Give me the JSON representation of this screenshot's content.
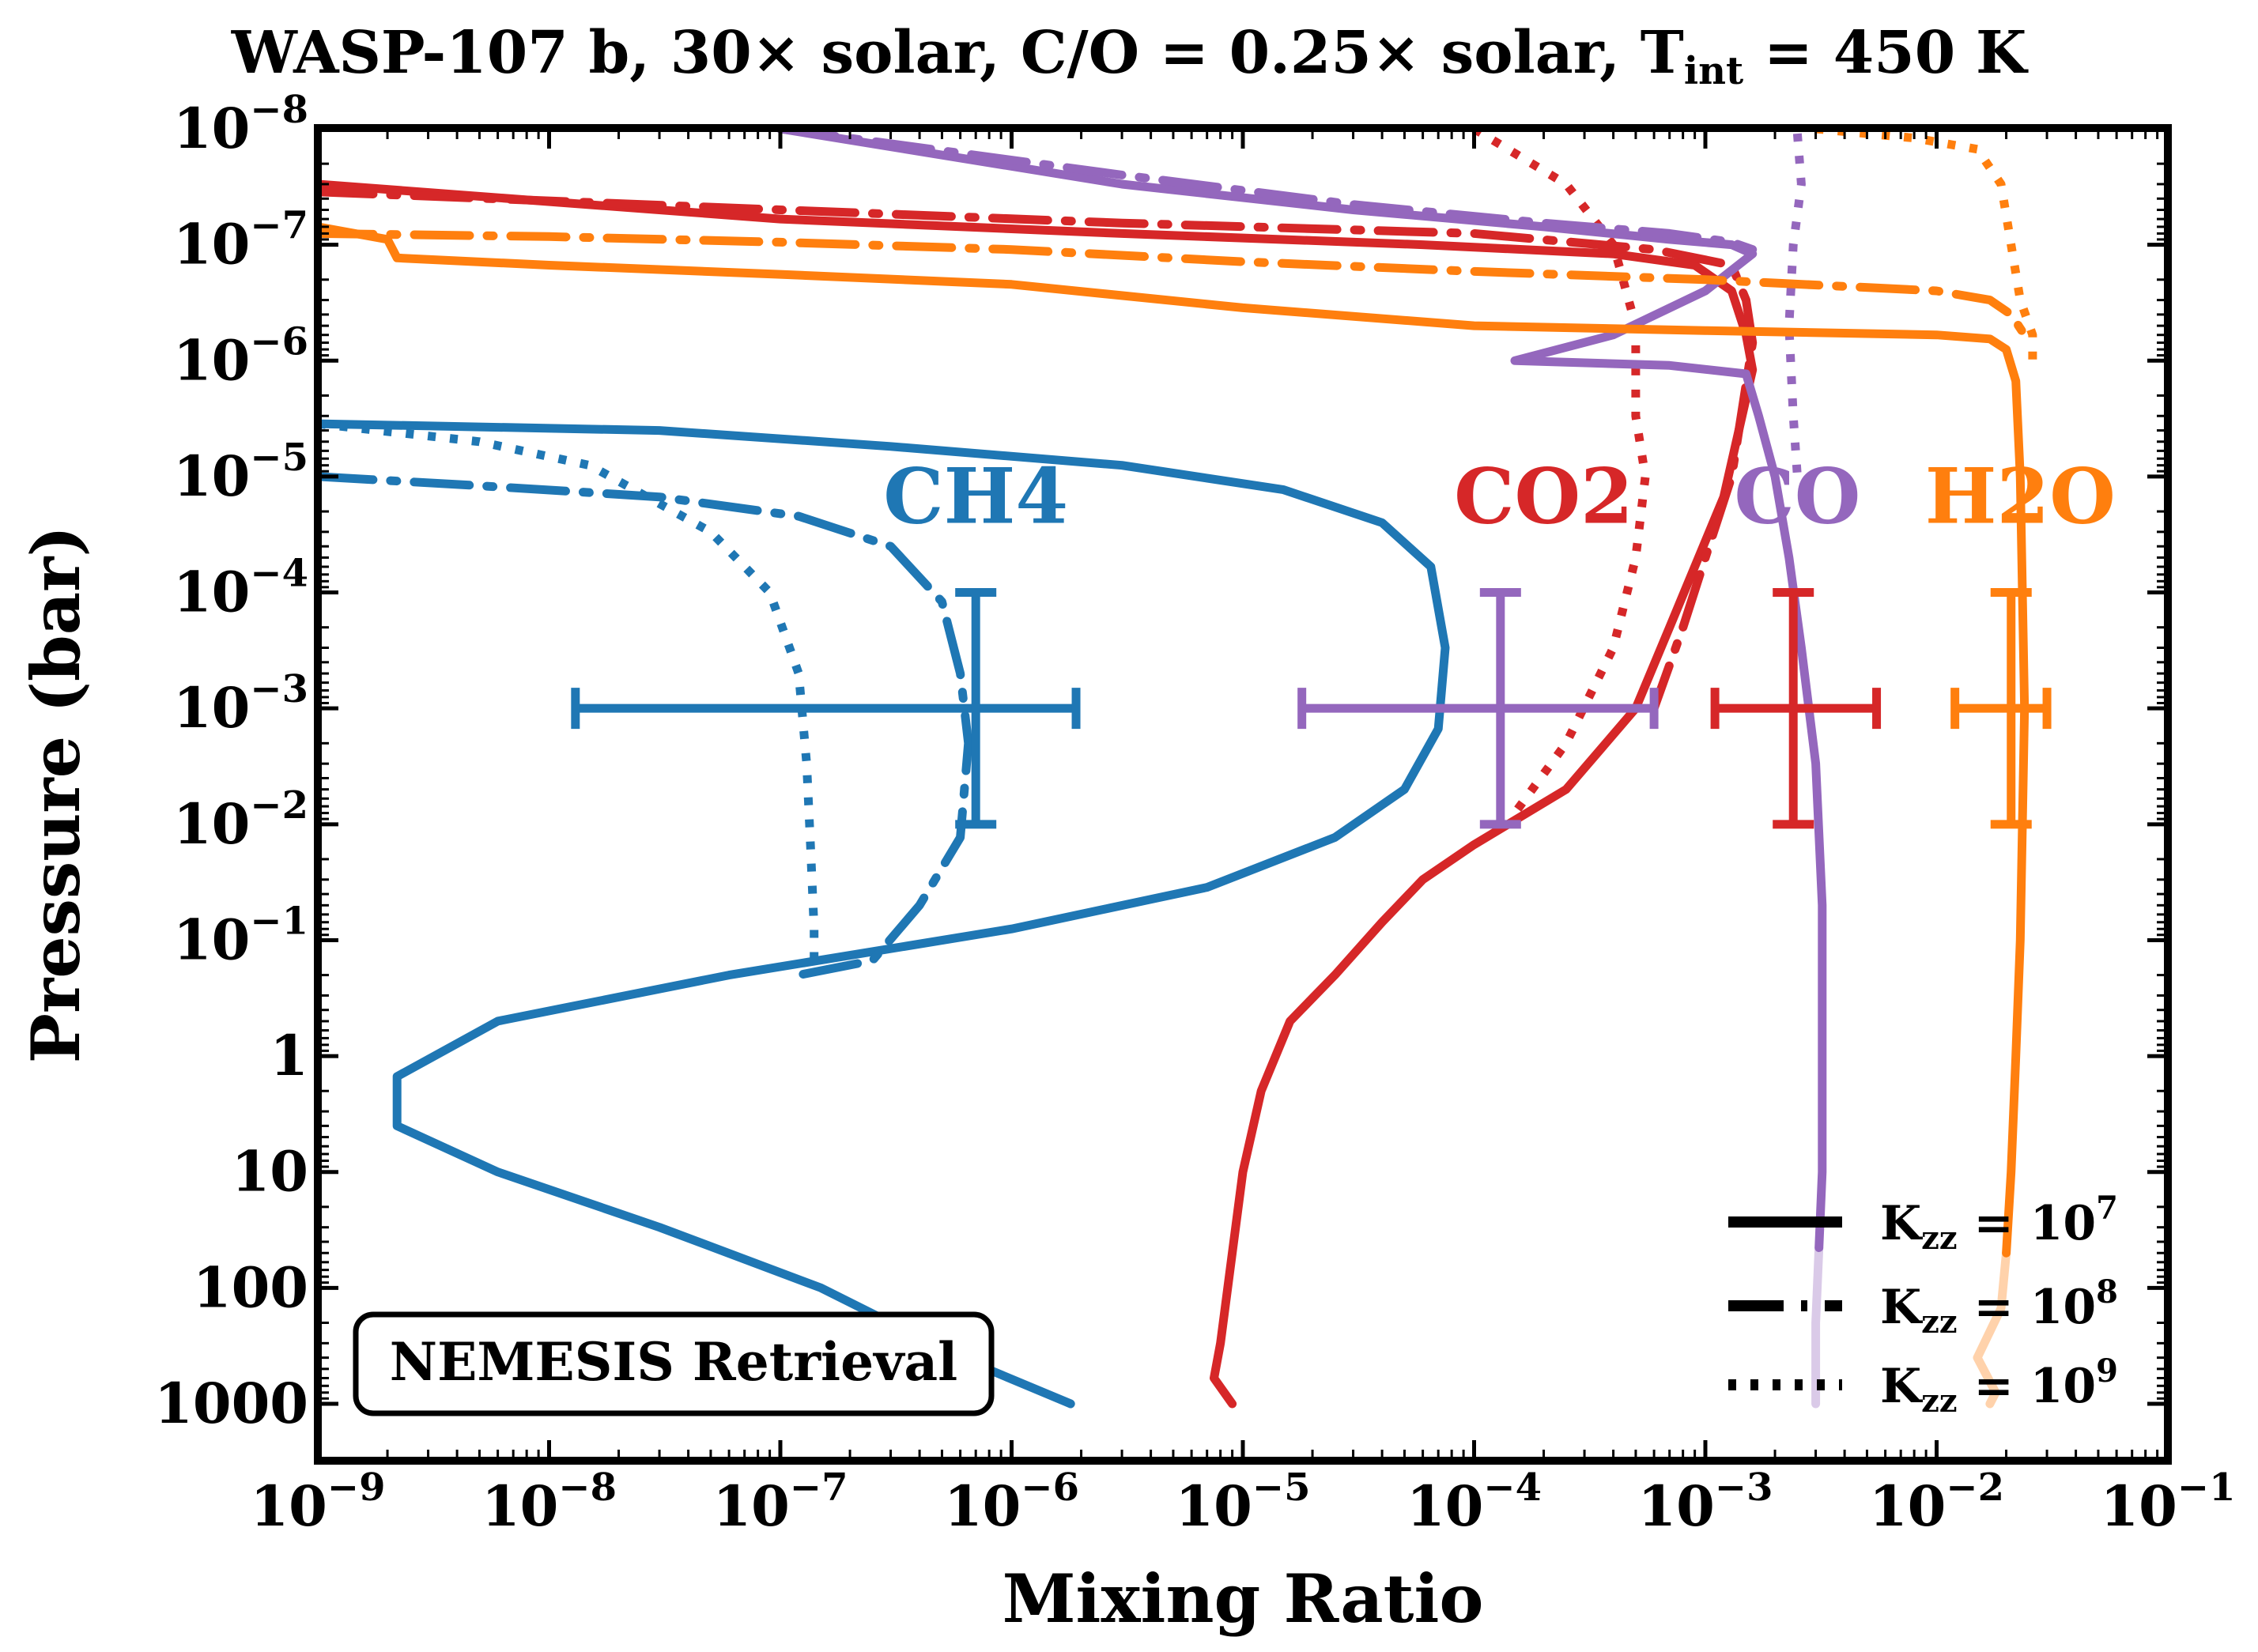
{
  "chart_data": {
    "type": "line",
    "title": "WASP-107 b, 30× solar, C/O = 0.25× solar, T",
    "title_sub": "int",
    "title_tail": " = 450 K",
    "xlabel": "Mixing Ratio",
    "ylabel": "Pressure (bar)",
    "xscale": "log",
    "yscale": "log",
    "y_inverted": true,
    "xlim": [
      1e-09,
      0.1
    ],
    "ylim": [
      1000,
      1e-08
    ],
    "x_ticks": [
      {
        "value": 1e-09,
        "base": "10",
        "exp": "−9"
      },
      {
        "value": 1e-08,
        "base": "10",
        "exp": "−8"
      },
      {
        "value": 1e-07,
        "base": "10",
        "exp": "−7"
      },
      {
        "value": 1e-06,
        "base": "10",
        "exp": "−6"
      },
      {
        "value": 1e-05,
        "base": "10",
        "exp": "−5"
      },
      {
        "value": 0.0001,
        "base": "10",
        "exp": "−4"
      },
      {
        "value": 0.001,
        "base": "10",
        "exp": "−3"
      },
      {
        "value": 0.01,
        "base": "10",
        "exp": "−2"
      },
      {
        "value": 0.1,
        "base": "10",
        "exp": "−1"
      }
    ],
    "y_ticks": [
      {
        "value": 1e-08,
        "base": "10",
        "exp": "−8"
      },
      {
        "value": 1e-07,
        "base": "10",
        "exp": "−7"
      },
      {
        "value": 1e-06,
        "base": "10",
        "exp": "−6"
      },
      {
        "value": 1e-05,
        "base": "10",
        "exp": "−5"
      },
      {
        "value": 0.0001,
        "base": "10",
        "exp": "−4"
      },
      {
        "value": 0.001,
        "base": "10",
        "exp": "−3"
      },
      {
        "value": 0.01,
        "base": "10",
        "exp": "−2"
      },
      {
        "value": 0.1,
        "base": "10",
        "exp": "−1"
      },
      {
        "value": 1,
        "base": "1",
        "exp": ""
      },
      {
        "value": 10,
        "base": "10",
        "exp": ""
      },
      {
        "value": 100,
        "base": "100",
        "exp": ""
      },
      {
        "value": 1000,
        "base": "1000",
        "exp": ""
      }
    ],
    "species": [
      {
        "name": "CH4",
        "color": "#1f77b4",
        "label_at": [
          7e-07,
          2.5e-05
        ]
      },
      {
        "name": "CO2",
        "color": "#d62728",
        "label_at": [
          0.0002,
          2.5e-05
        ]
      },
      {
        "name": "CO",
        "color": "#9467bd",
        "label_at": [
          0.0025,
          2.5e-05
        ]
      },
      {
        "name": "H2O",
        "color": "#ff7f0e",
        "label_at": [
          0.023,
          2.5e-05
        ]
      }
    ],
    "series": [
      {
        "species": "CH4",
        "kzz": "1e7",
        "style": "solid",
        "color": "#1f77b4",
        "points": [
          [
            1e-09,
            3.5e-06
          ],
          [
            3e-08,
            4e-06
          ],
          [
            3e-07,
            5.5e-06
          ],
          [
            3e-06,
            8e-06
          ],
          [
            1.5e-05,
            1.3e-05
          ],
          [
            4e-05,
            2.5e-05
          ],
          [
            6.5e-05,
            6e-05
          ],
          [
            7.5e-05,
            0.0003
          ],
          [
            7e-05,
            0.0015
          ],
          [
            5e-05,
            0.005
          ],
          [
            2.5e-05,
            0.013
          ],
          [
            7e-06,
            0.035
          ],
          [
            1e-06,
            0.08
          ],
          [
            6e-08,
            0.2
          ],
          [
            6e-09,
            0.5
          ],
          [
            2.2e-09,
            1.5
          ],
          [
            2.2e-09,
            4
          ],
          [
            6e-09,
            10
          ],
          [
            3e-08,
            30
          ],
          [
            1.5e-07,
            100
          ],
          [
            6e-07,
            400
          ],
          [
            1.8e-06,
            1000
          ]
        ]
      },
      {
        "species": "CH4",
        "kzz": "1e8",
        "style": "dashdot",
        "color": "#1f77b4",
        "points": [
          [
            1e-09,
            1e-05
          ],
          [
            5e-09,
            1.2e-05
          ],
          [
            3e-08,
            1.5e-05
          ],
          [
            1.2e-07,
            2.2e-05
          ],
          [
            3e-07,
            4e-05
          ],
          [
            5e-07,
            0.00012
          ],
          [
            6e-07,
            0.0005
          ],
          [
            6.5e-07,
            0.002
          ],
          [
            6e-07,
            0.013
          ],
          [
            4e-07,
            0.05
          ],
          [
            2.5e-07,
            0.15
          ],
          [
            1.2e-07,
            0.2
          ]
        ]
      },
      {
        "species": "CH4",
        "kzz": "1e9",
        "style": "dotted",
        "color": "#1f77b4",
        "points": [
          [
            1e-09,
            3.5e-06
          ],
          [
            5e-09,
            5e-06
          ],
          [
            1.5e-08,
            8e-06
          ],
          [
            5e-08,
            3e-05
          ],
          [
            9e-08,
            0.0001
          ],
          [
            1.2e-07,
            0.0005
          ],
          [
            1.3e-07,
            0.003
          ],
          [
            1.35e-07,
            0.015
          ],
          [
            1.4e-07,
            0.08
          ],
          [
            1.4e-07,
            0.16
          ]
        ]
      },
      {
        "species": "CO2",
        "kzz": "1e7",
        "style": "solid",
        "color": "#d62728",
        "points": [
          [
            1e-09,
            3e-08
          ],
          [
            1e-07,
            6e-08
          ],
          [
            3e-06,
            8e-08
          ],
          [
            6e-05,
            1e-07
          ],
          [
            0.0004,
            1.2e-07
          ],
          [
            0.0009,
            1.5e-07
          ],
          [
            0.0013,
            2.5e-07
          ],
          [
            0.0015,
            6e-07
          ],
          [
            0.0016,
            1.2e-06
          ],
          [
            0.0012,
            1.5e-05
          ],
          [
            0.0007,
            0.0002
          ],
          [
            0.0005,
            0.001
          ],
          [
            0.00025,
            0.005
          ],
          [
            0.0001,
            0.015
          ],
          [
            6e-05,
            0.03
          ],
          [
            4e-05,
            0.07
          ],
          [
            2.5e-05,
            0.2
          ],
          [
            1.6e-05,
            0.5
          ],
          [
            1.2e-05,
            2
          ],
          [
            1e-05,
            10
          ],
          [
            9e-06,
            50
          ],
          [
            8e-06,
            300
          ],
          [
            7.5e-06,
            600
          ],
          [
            9e-06,
            1000
          ]
        ]
      },
      {
        "species": "CO2",
        "kzz": "1e8",
        "style": "dashdot",
        "color": "#d62728",
        "points": [
          [
            1e-09,
            3.5e-08
          ],
          [
            1e-07,
            5e-08
          ],
          [
            3e-06,
            6.5e-08
          ],
          [
            0.0001,
            8e-08
          ],
          [
            0.0006,
            1.1e-07
          ],
          [
            0.0013,
            1.5e-07
          ],
          [
            0.0015,
            3e-07
          ],
          [
            0.0016,
            7e-07
          ],
          [
            0.0013,
            1e-05
          ],
          [
            0.001,
            5e-05
          ],
          [
            0.0008,
            0.0002
          ],
          [
            0.0006,
            0.001
          ]
        ]
      },
      {
        "species": "CO2",
        "kzz": "1e9",
        "style": "dotted",
        "color": "#d62728",
        "points": [
          [
            0.0001,
            1e-08
          ],
          [
            0.00025,
            3e-08
          ],
          [
            0.0004,
            1e-07
          ],
          [
            0.0005,
            5e-07
          ],
          [
            0.0005,
            3e-06
          ],
          [
            0.00055,
            1e-05
          ],
          [
            0.0005,
            5e-05
          ],
          [
            0.0004,
            0.0003
          ],
          [
            0.00025,
            0.002
          ],
          [
            0.00015,
            0.008
          ]
        ]
      },
      {
        "species": "CO",
        "kzz": "1e7",
        "style": "solid",
        "color": "#9467bd",
        "points": [
          [
            1e-07,
            1e-08
          ],
          [
            3e-06,
            3e-08
          ],
          [
            3e-05,
            5e-08
          ],
          [
            0.0002,
            7e-08
          ],
          [
            0.0007,
            9e-08
          ],
          [
            0.0013,
            1e-07
          ],
          [
            0.0016,
            1.2e-07
          ],
          [
            0.001,
            2.5e-07
          ],
          [
            0.0004,
            6e-07
          ],
          [
            0.00015,
            1e-06
          ],
          [
            0.0007,
            1.1e-06
          ],
          [
            0.0015,
            1.3e-06
          ],
          [
            0.0017,
            3e-06
          ],
          [
            0.002,
            1e-05
          ],
          [
            0.0023,
            5e-05
          ],
          [
            0.0026,
            0.0003
          ],
          [
            0.003,
            0.003
          ],
          [
            0.0032,
            0.05
          ],
          [
            0.0032,
            1
          ],
          [
            0.0032,
            10
          ],
          [
            0.0031,
            45
          ]
        ]
      },
      {
        "species": "CO",
        "kzz": "1e8",
        "style": "dashdot",
        "color": "#9467bd",
        "points": [
          [
            1e-07,
            1e-08
          ],
          [
            3e-06,
            2.5e-08
          ],
          [
            3e-05,
            4.5e-08
          ],
          [
            0.0002,
            6.5e-08
          ],
          [
            0.0007,
            8e-08
          ],
          [
            0.0013,
            9.5e-08
          ],
          [
            0.0016,
            1.1e-07
          ]
        ]
      },
      {
        "species": "CO",
        "kzz": "1e9",
        "style": "dotted",
        "color": "#9467bd",
        "points": [
          [
            0.0025,
            1.1e-08
          ],
          [
            0.0026,
            3e-08
          ],
          [
            0.0024,
            1e-07
          ],
          [
            0.0023,
            5e-07
          ],
          [
            0.0024,
            3e-06
          ],
          [
            0.0025,
            1e-05
          ]
        ]
      },
      {
        "species": "CO",
        "kzz": "1e7",
        "style": "solid-faded",
        "color": "#9467bd",
        "points": [
          [
            0.0031,
            45
          ],
          [
            0.003,
            200
          ],
          [
            0.003,
            1000
          ]
        ]
      },
      {
        "species": "H2O",
        "kzz": "1e7",
        "style": "solid",
        "color": "#ff7f0e",
        "points": [
          [
            1e-09,
            7e-08
          ],
          [
            2e-09,
            9e-08
          ],
          [
            2.2e-09,
            1.3e-07
          ],
          [
            1e-08,
            1.5e-07
          ],
          [
            1e-07,
            1.8e-07
          ],
          [
            1e-06,
            2.2e-07
          ],
          [
            1e-05,
            3.5e-07
          ],
          [
            0.0001,
            5e-07
          ],
          [
            0.001,
            5.5e-07
          ],
          [
            0.01,
            6e-07
          ],
          [
            0.017,
            6.5e-07
          ],
          [
            0.02,
            8e-07
          ],
          [
            0.022,
            1.5e-06
          ],
          [
            0.023,
            1e-05
          ],
          [
            0.024,
            0.001
          ],
          [
            0.023,
            0.1
          ],
          [
            0.022,
            1
          ],
          [
            0.021,
            10
          ],
          [
            0.02,
            50
          ]
        ]
      },
      {
        "species": "H2O",
        "kzz": "1e8",
        "style": "dashdot",
        "color": "#ff7f0e",
        "points": [
          [
            1e-09,
            8e-08
          ],
          [
            1e-08,
            8.5e-08
          ],
          [
            1e-07,
            9.5e-08
          ],
          [
            1e-06,
            1.1e-07
          ],
          [
            1e-05,
            1.4e-07
          ],
          [
            0.0001,
            1.7e-07
          ],
          [
            0.001,
            2e-07
          ],
          [
            0.01,
            2.5e-07
          ],
          [
            0.017,
            3e-07
          ],
          [
            0.021,
            4e-07
          ],
          [
            0.024,
            6e-07
          ]
        ]
      },
      {
        "species": "H2O",
        "kzz": "1e9",
        "style": "dotted",
        "color": "#ff7f0e",
        "points": [
          [
            0.003,
            1e-08
          ],
          [
            0.008,
            1.2e-08
          ],
          [
            0.015,
            1.5e-08
          ],
          [
            0.019,
            3e-08
          ],
          [
            0.021,
            1e-07
          ],
          [
            0.023,
            3e-07
          ],
          [
            0.026,
            6e-07
          ],
          [
            0.026,
            1.2e-06
          ]
        ]
      },
      {
        "species": "H2O",
        "kzz": "1e7",
        "style": "solid-faded",
        "color": "#ff7f0e",
        "points": [
          [
            0.02,
            50
          ],
          [
            0.019,
            150
          ],
          [
            0.015,
            400
          ],
          [
            0.018,
            800
          ],
          [
            0.017,
            1000
          ]
        ]
      }
    ],
    "retrieval": {
      "label": "NEMESIS Retrieval",
      "points": [
        {
          "species": "CH4",
          "color": "#1f77b4",
          "x": 7e-07,
          "xlo": 1.3e-08,
          "xhi": 1.9e-06,
          "p": 0.001,
          "plo": 0.0001,
          "phi": 0.01
        },
        {
          "species": "CO",
          "color": "#9467bd",
          "x": 0.00013,
          "xlo": 1.8e-05,
          "xhi": 0.0006,
          "p": 0.001,
          "plo": 0.0001,
          "phi": 0.01
        },
        {
          "species": "CO2",
          "color": "#d62728",
          "x": 0.0024,
          "xlo": 0.0011,
          "xhi": 0.0055,
          "p": 0.001,
          "plo": 0.0001,
          "phi": 0.01
        },
        {
          "species": "H2O",
          "color": "#ff7f0e",
          "x": 0.021,
          "xlo": 0.012,
          "xhi": 0.03,
          "p": 0.001,
          "plo": 0.0001,
          "phi": 0.01
        }
      ]
    },
    "legend": {
      "placement": "bottom-right",
      "entries": [
        {
          "style": "solid",
          "label": "K",
          "sub": "zz",
          "tail": " = 10",
          "sup": "7"
        },
        {
          "style": "dashdot",
          "label": "K",
          "sub": "zz",
          "tail": " = 10",
          "sup": "8"
        },
        {
          "style": "dotted",
          "label": "K",
          "sub": "zz",
          "tail": " = 10",
          "sup": "9"
        }
      ]
    }
  }
}
